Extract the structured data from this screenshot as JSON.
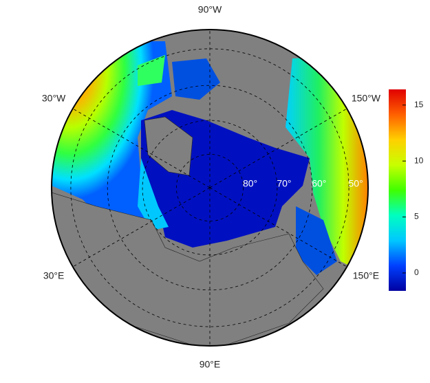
{
  "map": {
    "longitude_labels": [
      {
        "value": -90,
        "label": "90°W"
      },
      {
        "value": -30,
        "label": "30°W"
      },
      {
        "value": -150,
        "label": "150°W"
      },
      {
        "value": 30,
        "label": "30°E"
      },
      {
        "value": 150,
        "label": "150°E"
      },
      {
        "value": 90,
        "label": "90°E"
      }
    ],
    "latitude_labels": [
      {
        "value": 80,
        "label": "80°"
      },
      {
        "value": 70,
        "label": "70°"
      },
      {
        "value": 60,
        "label": "60°"
      },
      {
        "value": 50,
        "label": "50°"
      }
    ]
  },
  "colorbar": {
    "min": -1.6,
    "max": 16.4,
    "ticks": [
      0,
      5,
      10,
      15
    ],
    "colors": [
      "#0000a0",
      "#0040ff",
      "#00c8ff",
      "#00ffc0",
      "#40ff00",
      "#c8ff00",
      "#ffd000",
      "#ff6000",
      "#e00000"
    ]
  }
}
